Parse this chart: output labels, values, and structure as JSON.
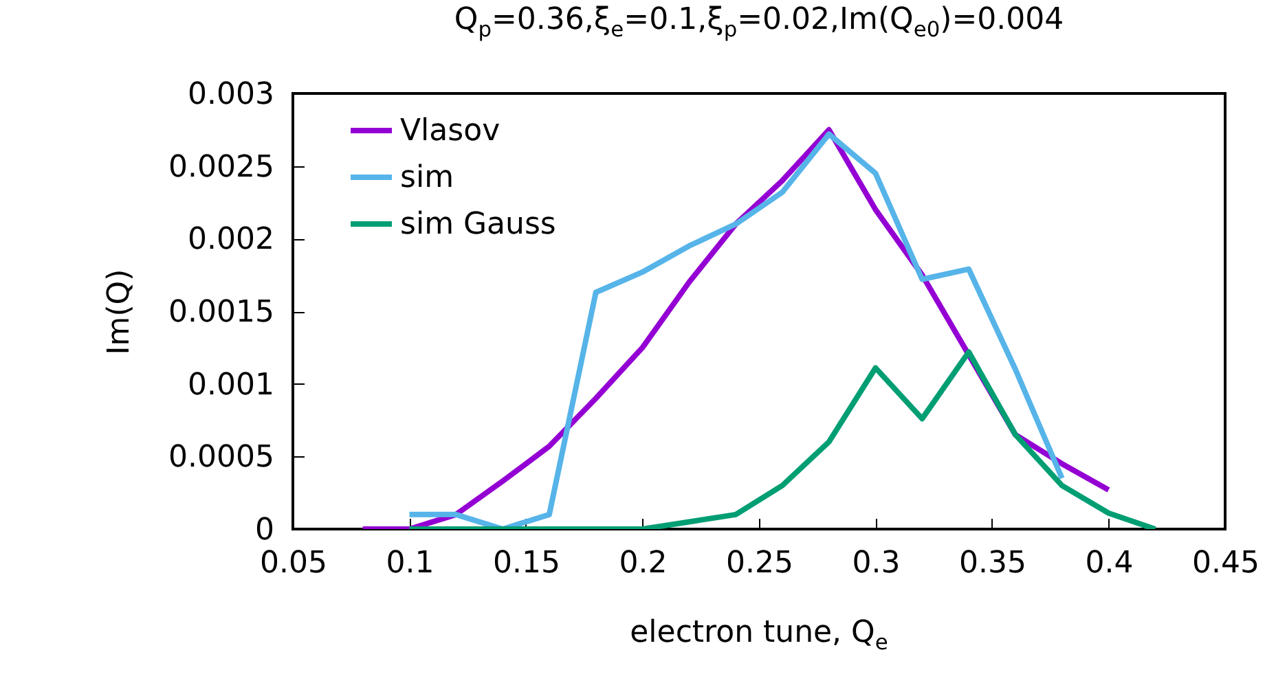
{
  "chart_data": {
    "type": "line",
    "title": "Q$_{p}$=0.36,ξ$_{e}$=0.1,ξ$_{p}$=0.02,Im(Q$_{e0}$)=0.004",
    "xlabel": "electron tune, Q$_{e}$",
    "ylabel": "Im(Q)",
    "xlim": [
      0.05,
      0.45
    ],
    "xticks": [
      0.05,
      0.1,
      0.15,
      0.2,
      0.25,
      0.3,
      0.35,
      0.4,
      0.45
    ],
    "ylim": [
      0,
      0.003
    ],
    "yticks": [
      0,
      0.0005,
      0.001,
      0.0015,
      0.002,
      0.0025,
      0.003
    ],
    "grid": false,
    "legend": "top left",
    "marker": "none",
    "line_style": "solid",
    "series": [
      {
        "name": "Vlasov",
        "color": "#9400d3",
        "x": [
          0.08,
          0.1,
          0.12,
          0.14,
          0.16,
          0.18,
          0.2,
          0.22,
          0.24,
          0.26,
          0.28,
          0.3,
          0.32,
          0.34,
          0.36,
          0.38,
          0.4
        ],
        "values": [
          0,
          0,
          0.0001,
          0.00033,
          0.00057,
          0.0009,
          0.00125,
          0.0017,
          0.0021,
          0.0024,
          0.00275,
          0.0022,
          0.00175,
          0.0012,
          0.00065,
          0.00045,
          0.00027
        ]
      },
      {
        "name": "sim",
        "color": "#56b4e9",
        "x": [
          0.1,
          0.12,
          0.14,
          0.16,
          0.18,
          0.2,
          0.22,
          0.24,
          0.26,
          0.28,
          0.3,
          0.32,
          0.34,
          0.36,
          0.38
        ],
        "values": [
          0.0001,
          0.0001,
          0,
          0.0001,
          0.00163,
          0.00177,
          0.00195,
          0.0021,
          0.00232,
          0.00272,
          0.00245,
          0.00172,
          0.00179,
          0.0011,
          0.00035
        ]
      },
      {
        "name": "sim Gauss",
        "color": "#009e73",
        "x": [
          0.1,
          0.12,
          0.14,
          0.16,
          0.18,
          0.2,
          0.22,
          0.24,
          0.26,
          0.28,
          0.3,
          0.32,
          0.34,
          0.36,
          0.38,
          0.4,
          0.42
        ],
        "values": [
          0,
          0,
          0,
          0,
          0,
          0,
          5e-05,
          0.0001,
          0.0003,
          0.0006,
          0.00111,
          0.00076,
          0.00122,
          0.00065,
          0.0003,
          0.00011,
          0
        ]
      }
    ]
  }
}
